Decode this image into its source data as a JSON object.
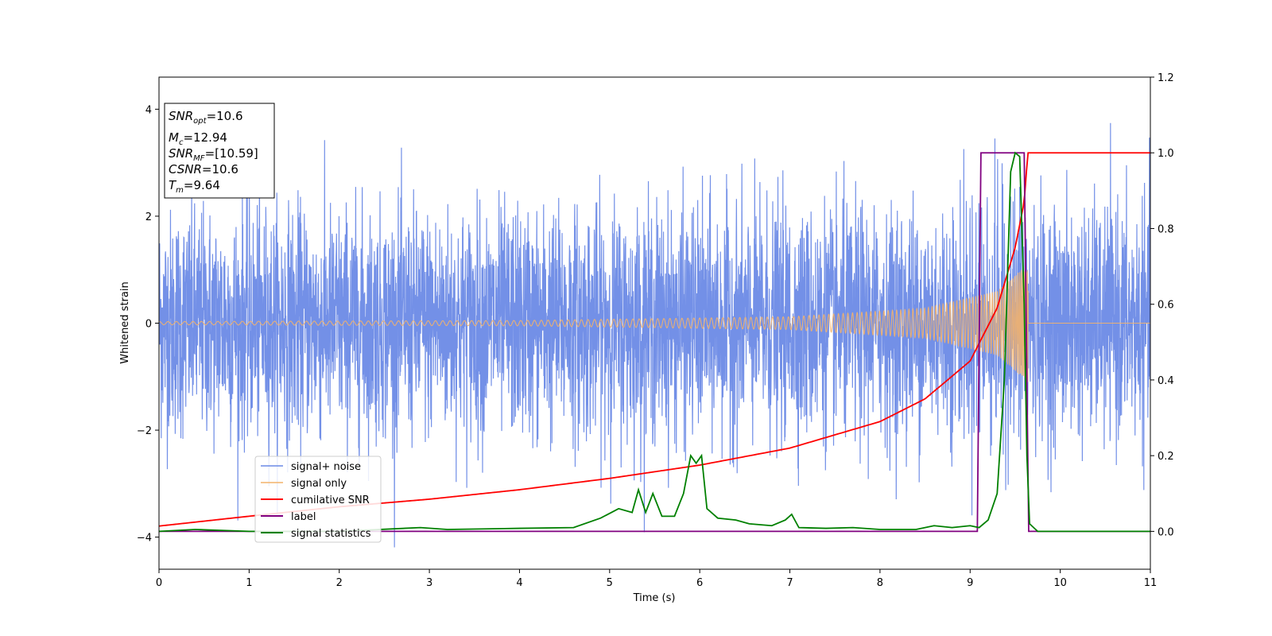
{
  "chart_data": {
    "type": "line",
    "title": "",
    "xlabel": "Time (s)",
    "ylabel": "Whitened strain",
    "xlim": [
      0,
      11
    ],
    "ylim_left": [
      -4.6,
      4.6
    ],
    "ylim_right": [
      -0.1,
      1.2
    ],
    "x_ticks": [
      "0",
      "1",
      "2",
      "3",
      "4",
      "5",
      "6",
      "7",
      "8",
      "9",
      "10",
      "11"
    ],
    "y_left_ticks": [
      "−4",
      "−2",
      "0",
      "2",
      "4"
    ],
    "y_right_ticks": [
      "0.0",
      "0.2",
      "0.4",
      "0.6",
      "0.8",
      "1.0",
      "1.2"
    ],
    "grid": false,
    "legend_position": "lower-left",
    "series": [
      {
        "name": "signal+ noise",
        "axis": "left",
        "color": "#6b8ae6",
        "description_values": {
          "approx_range": [
            -4.1,
            4.2
          ],
          "std": 1.0
        }
      },
      {
        "name": "signal only",
        "axis": "left",
        "color": "#f4b36a",
        "amplitude_points": [
          [
            0,
            0.03
          ],
          [
            4,
            0.05
          ],
          [
            7,
            0.12
          ],
          [
            8.5,
            0.28
          ],
          [
            9.3,
            0.6
          ],
          [
            9.64,
            1.1
          ],
          [
            9.65,
            0.0
          ],
          [
            11,
            0.0
          ]
        ]
      },
      {
        "name": "cumilative SNR",
        "axis": "right",
        "color": "#ff0000",
        "points": [
          [
            0,
            0.014
          ],
          [
            1,
            0.04
          ],
          [
            2,
            0.065
          ],
          [
            3,
            0.085
          ],
          [
            4,
            0.11
          ],
          [
            5,
            0.14
          ],
          [
            6,
            0.175
          ],
          [
            7,
            0.22
          ],
          [
            8,
            0.29
          ],
          [
            8.5,
            0.35
          ],
          [
            9,
            0.45
          ],
          [
            9.3,
            0.59
          ],
          [
            9.5,
            0.75
          ],
          [
            9.6,
            0.87
          ],
          [
            9.64,
            1.0
          ],
          [
            11,
            1.0
          ]
        ]
      },
      {
        "name": "label",
        "axis": "right",
        "color": "#800080",
        "points": [
          [
            0,
            0
          ],
          [
            9.08,
            0
          ],
          [
            9.12,
            1
          ],
          [
            9.6,
            1
          ],
          [
            9.65,
            0
          ],
          [
            11,
            0
          ]
        ]
      },
      {
        "name": "signal statistics",
        "axis": "right",
        "color": "#008000",
        "points": [
          [
            0,
            0.0
          ],
          [
            0.4,
            0.005
          ],
          [
            1,
            0.0
          ],
          [
            2,
            0.0
          ],
          [
            2.9,
            0.01
          ],
          [
            3.2,
            0.005
          ],
          [
            4,
            0.008
          ],
          [
            4.6,
            0.01
          ],
          [
            4.9,
            0.035
          ],
          [
            5.1,
            0.06
          ],
          [
            5.25,
            0.05
          ],
          [
            5.32,
            0.11
          ],
          [
            5.4,
            0.05
          ],
          [
            5.48,
            0.1
          ],
          [
            5.58,
            0.04
          ],
          [
            5.72,
            0.04
          ],
          [
            5.82,
            0.1
          ],
          [
            5.9,
            0.2
          ],
          [
            5.96,
            0.18
          ],
          [
            6.02,
            0.2
          ],
          [
            6.08,
            0.06
          ],
          [
            6.2,
            0.035
          ],
          [
            6.4,
            0.03
          ],
          [
            6.55,
            0.02
          ],
          [
            6.8,
            0.015
          ],
          [
            6.95,
            0.03
          ],
          [
            7.02,
            0.045
          ],
          [
            7.1,
            0.01
          ],
          [
            7.4,
            0.008
          ],
          [
            7.7,
            0.01
          ],
          [
            8.0,
            0.005
          ],
          [
            8.4,
            0.005
          ],
          [
            8.6,
            0.015
          ],
          [
            8.8,
            0.01
          ],
          [
            9.0,
            0.015
          ],
          [
            9.1,
            0.01
          ],
          [
            9.2,
            0.03
          ],
          [
            9.3,
            0.1
          ],
          [
            9.38,
            0.4
          ],
          [
            9.45,
            0.95
          ],
          [
            9.5,
            1.0
          ],
          [
            9.55,
            0.99
          ],
          [
            9.6,
            0.6
          ],
          [
            9.63,
            0.2
          ],
          [
            9.66,
            0.02
          ],
          [
            9.75,
            0.0
          ],
          [
            11,
            0.0
          ]
        ]
      }
    ],
    "annotations": {
      "snr_opt": "=10.6",
      "mc": "=12.94",
      "snr_mf": "=[10.59]",
      "csnr": "=10.6",
      "tm": "=9.64"
    }
  }
}
